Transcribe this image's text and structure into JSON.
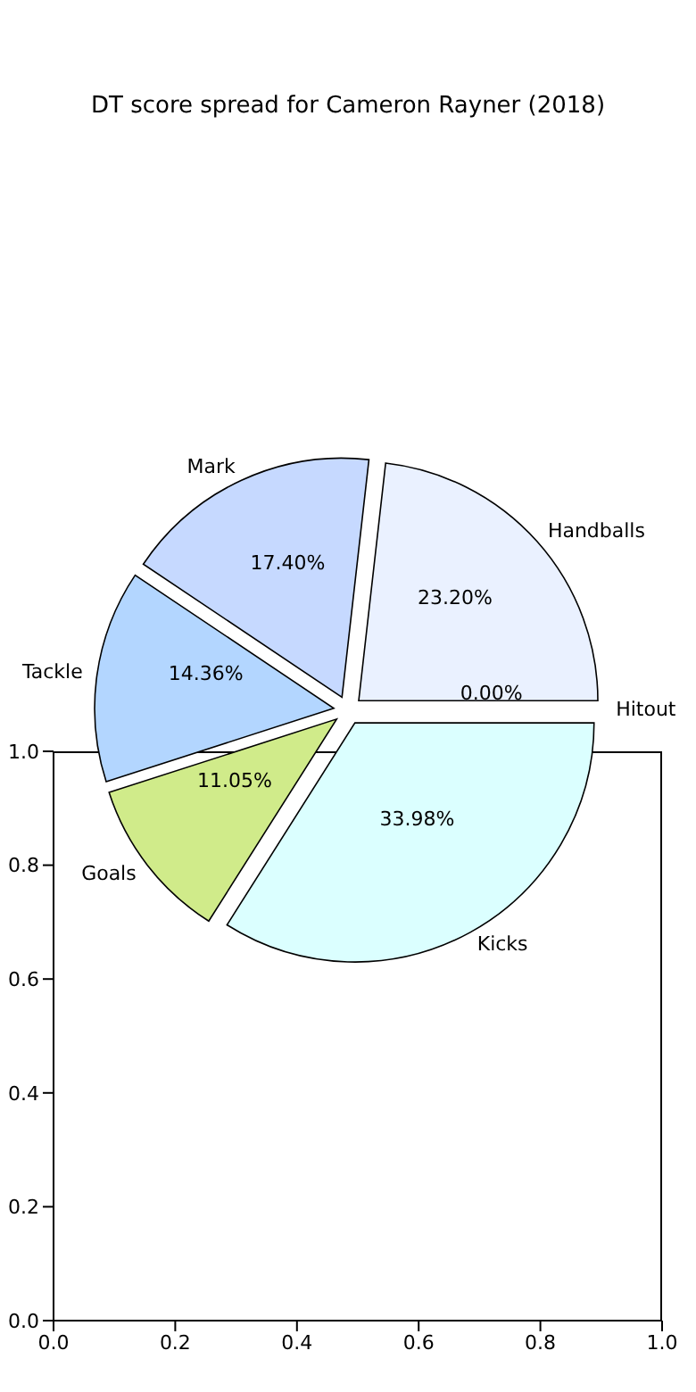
{
  "chart_data": [
    {
      "type": "pie",
      "title": "DT score spread for Cameron Rayner (2018)",
      "categories": [
        "Handballs",
        "Mark",
        "Tackle",
        "Goals",
        "Kicks",
        "Hitout"
      ],
      "values": [
        23.2,
        17.4,
        14.36,
        11.05,
        33.98,
        0.0
      ],
      "value_labels": [
        "23.20%",
        "17.40%",
        "14.36%",
        "11.05%",
        "33.98%",
        "0.00%"
      ],
      "colors": [
        "#eaf1ff",
        "#c6d9ff",
        "#b3d6ff",
        "#d0eb8a",
        "#dbffff",
        "#f0f0f0"
      ]
    },
    {
      "type": "scatter",
      "xlim": [
        0,
        1
      ],
      "xticks": [
        {
          "value": 0,
          "label": "0.0"
        },
        {
          "value": 0.2,
          "label": "0.2"
        },
        {
          "value": 0.4,
          "label": "0.4"
        },
        {
          "value": 0.6,
          "label": "0.6"
        },
        {
          "value": 0.8,
          "label": "0.8"
        },
        {
          "value": 1,
          "label": "1.0"
        }
      ],
      "ylim": [
        0,
        1
      ],
      "yticks": [
        {
          "value": 0,
          "label": "0.0"
        },
        {
          "value": 0.2,
          "label": "0.2"
        },
        {
          "value": 0.4,
          "label": "0.4"
        },
        {
          "value": 0.6,
          "label": "0.6"
        },
        {
          "value": 0.8,
          "label": "0.8"
        },
        {
          "value": 1,
          "label": "1.0"
        }
      ]
    }
  ]
}
